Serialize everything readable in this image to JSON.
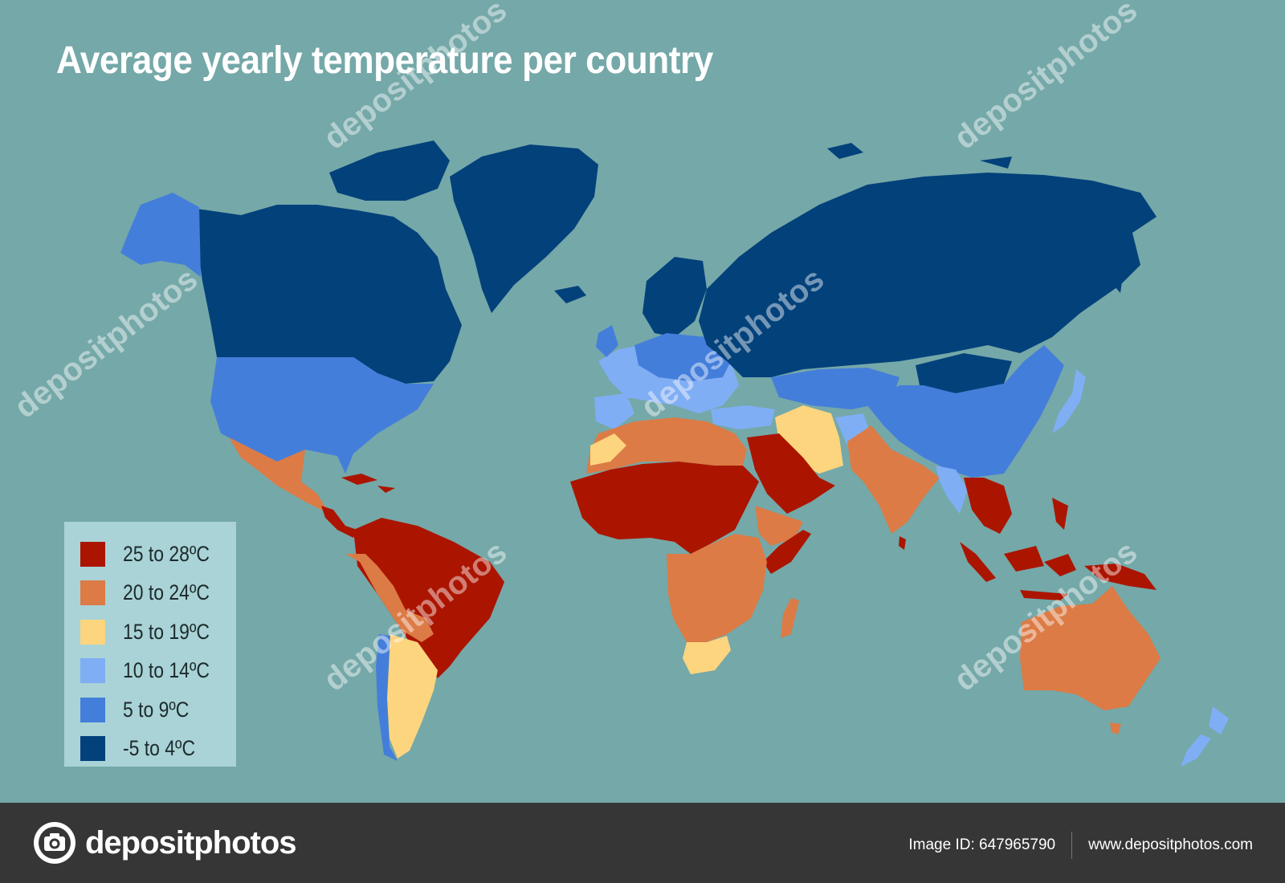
{
  "title": "Average yearly temperature per country",
  "legend": [
    {
      "label": "25 to 28ºC",
      "color": "#ab1500"
    },
    {
      "label": "20 to 24ºC",
      "color": "#dc7b45"
    },
    {
      "label": "15 to 19ºC",
      "color": "#fdd57f"
    },
    {
      "label": "10 to 14ºC",
      "color": "#80aef5"
    },
    {
      "label": "5 to 9ºC",
      "color": "#447edb"
    },
    {
      "label": "-5 to 4ºC",
      "color": "#03417b"
    }
  ],
  "watermark_text": "depositphotos",
  "footer": {
    "brand": "depositphotos",
    "image_id": "Image ID: 647965790",
    "website": "www.depositphotos.com"
  }
}
